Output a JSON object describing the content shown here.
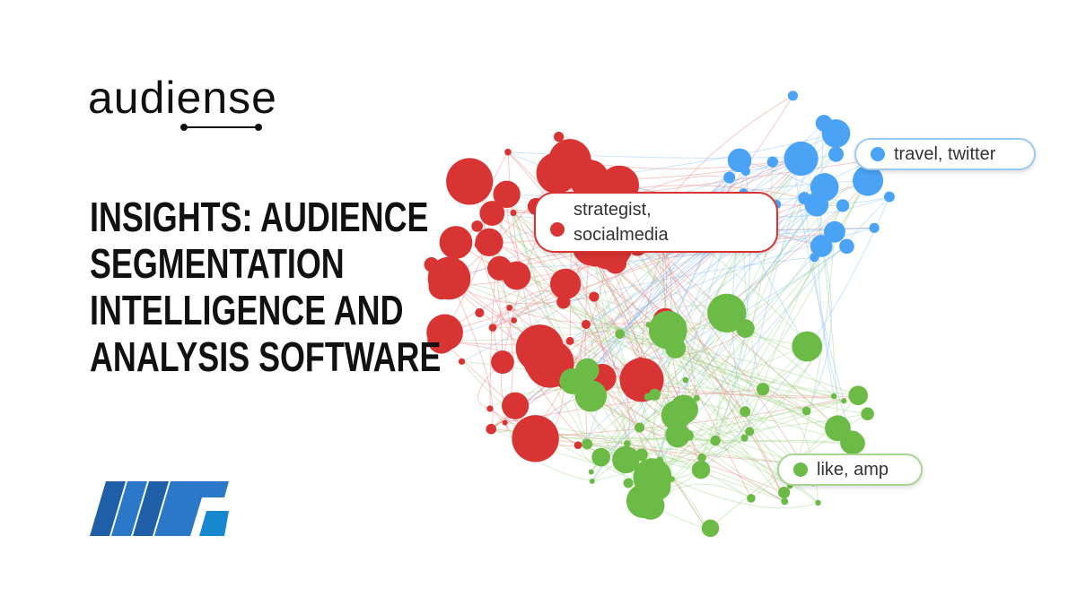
{
  "logo": {
    "text": "audiense"
  },
  "headline": [
    "INSIGHTS: AUDIENCE",
    "SEGMENTATION",
    "INTELLIGENCE AND",
    "ANALYSIS SOFTWARE"
  ],
  "clusters": [
    {
      "label": "travel, twitter"
    },
    {
      "label": "strategist, socialmedia"
    },
    {
      "label": "like, amp"
    }
  ]
}
